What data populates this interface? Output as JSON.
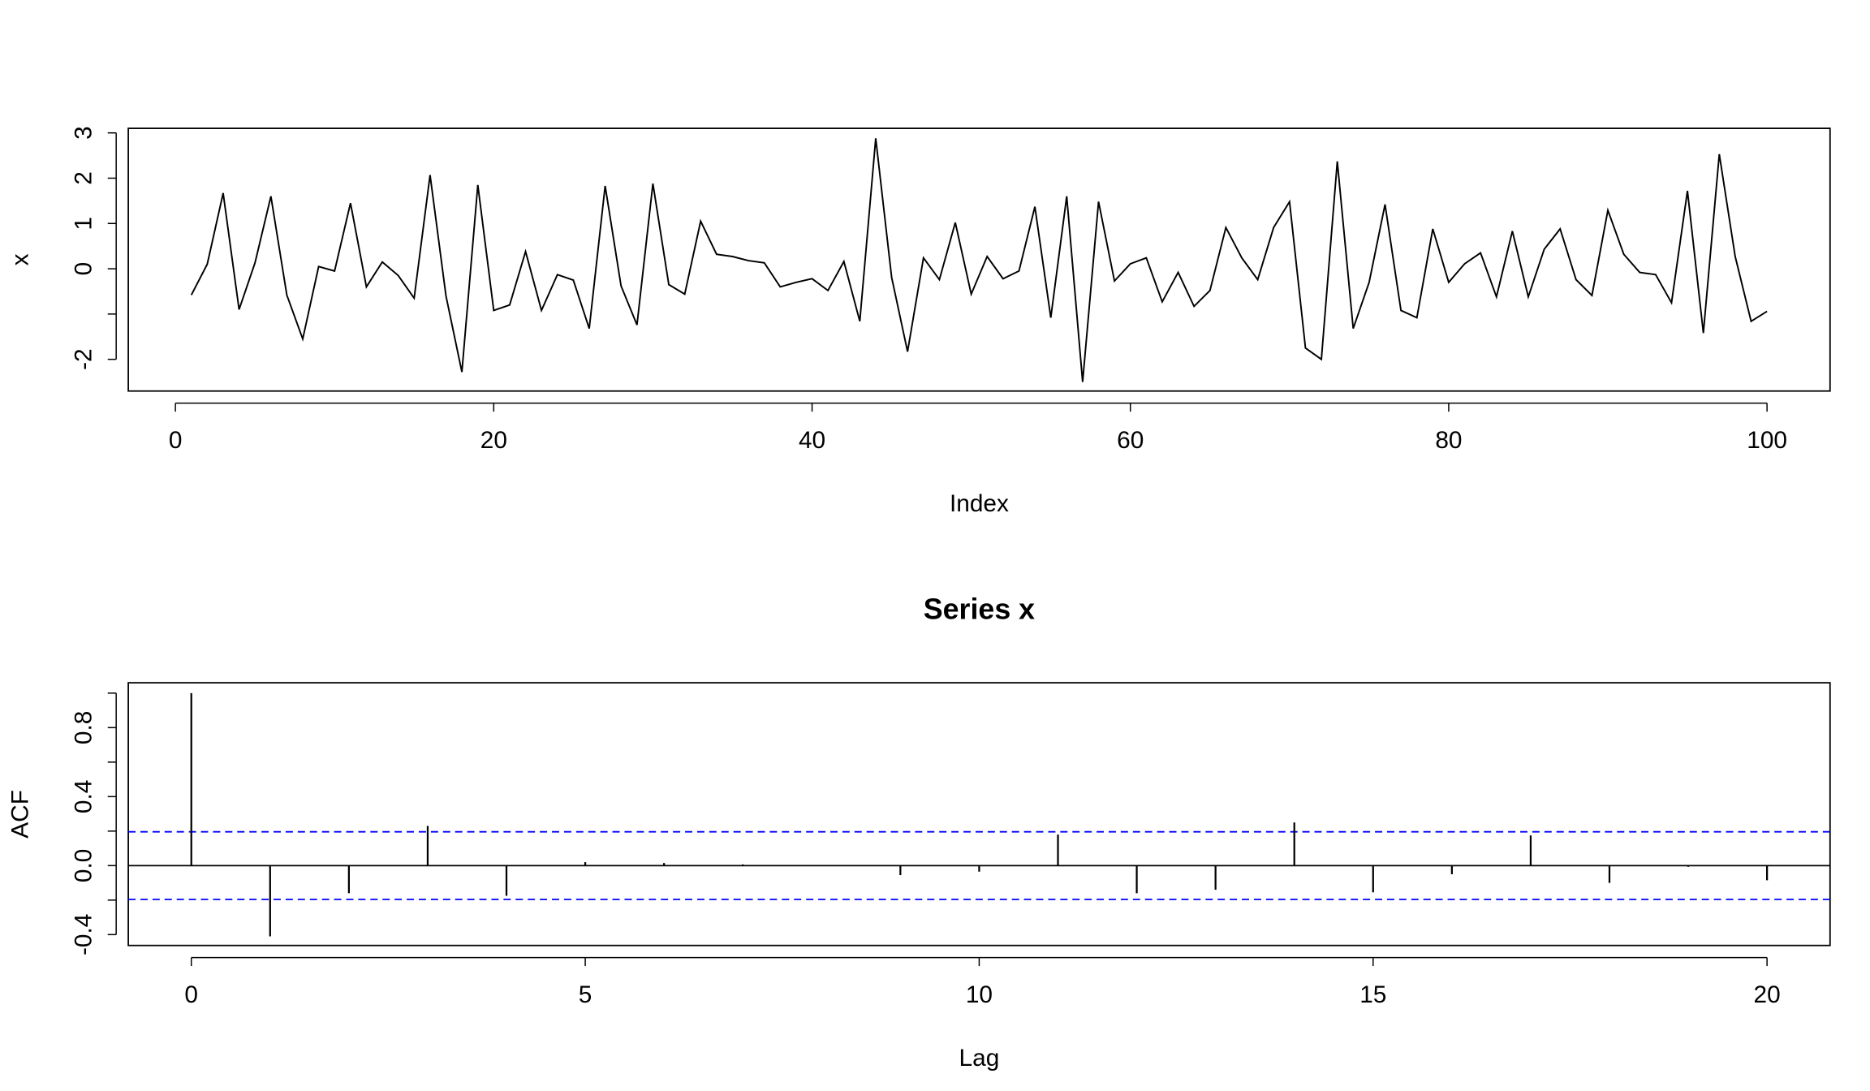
{
  "chart_data": [
    {
      "type": "line",
      "xlabel": "Index",
      "ylabel": "x",
      "color": "#000000",
      "x": [
        1,
        2,
        3,
        4,
        5,
        6,
        7,
        8,
        9,
        10,
        11,
        12,
        13,
        14,
        15,
        16,
        17,
        18,
        19,
        20,
        21,
        22,
        23,
        24,
        25,
        26,
        27,
        28,
        29,
        30,
        31,
        32,
        33,
        34,
        35,
        36,
        37,
        38,
        39,
        40,
        41,
        42,
        43,
        44,
        45,
        46,
        47,
        48,
        49,
        50,
        51,
        52,
        53,
        54,
        55,
        56,
        57,
        58,
        59,
        60,
        61,
        62,
        63,
        64,
        65,
        66,
        67,
        68,
        69,
        70,
        71,
        72,
        73,
        74,
        75,
        76,
        77,
        78,
        79,
        80,
        81,
        82,
        83,
        84,
        85,
        86,
        87,
        88,
        89,
        90,
        91,
        92,
        93,
        94,
        95,
        96,
        97,
        98,
        99,
        100
      ],
      "values": [
        -0.58,
        0.1,
        1.67,
        -0.9,
        0.13,
        1.6,
        -0.58,
        -1.55,
        0.05,
        -0.05,
        1.45,
        -0.4,
        0.15,
        -0.15,
        -0.65,
        2.07,
        -0.6,
        -2.28,
        1.85,
        -0.92,
        -0.8,
        0.38,
        -0.92,
        -0.13,
        -0.25,
        -1.32,
        1.83,
        -0.38,
        -1.24,
        1.88,
        -0.35,
        -0.56,
        1.05,
        0.32,
        0.27,
        0.18,
        0.13,
        -0.4,
        -0.3,
        -0.22,
        -0.48,
        0.16,
        -1.16,
        2.88,
        -0.19,
        -1.83,
        0.24,
        -0.24,
        1.02,
        -0.56,
        0.27,
        -0.22,
        -0.05,
        1.37,
        -1.08,
        1.6,
        -2.5,
        1.48,
        -0.27,
        0.11,
        0.24,
        -0.73,
        -0.08,
        -0.83,
        -0.48,
        0.91,
        0.24,
        -0.24,
        0.91,
        1.48,
        -1.75,
        -2.0,
        2.37,
        -1.32,
        -0.3,
        1.42,
        -0.92,
        -1.08,
        0.88,
        -0.3,
        0.11,
        0.35,
        -0.62,
        0.83,
        -0.62,
        0.43,
        0.88,
        -0.24,
        -0.59,
        1.29,
        0.32,
        -0.08,
        -0.13,
        -0.75,
        1.72,
        -1.42,
        2.53,
        0.27,
        -1.16,
        -0.94
      ],
      "xlim": [
        -2.96,
        103.96
      ],
      "ylim": [
        -2.7,
        3.1
      ],
      "xticks": [
        0,
        20,
        40,
        60,
        80,
        100
      ],
      "yticks": [
        -2,
        {
          "value": -1,
          "label": null
        },
        0,
        1,
        2,
        3
      ]
    },
    {
      "type": "acf",
      "title": "Series  x",
      "xlabel": "Lag",
      "ylabel": "ACF",
      "color": "#000000",
      "x": [
        0,
        1,
        2,
        3,
        4,
        5,
        6,
        7,
        8,
        9,
        10,
        11,
        12,
        13,
        14,
        15,
        16,
        17,
        18,
        19,
        20
      ],
      "values": [
        1.0,
        -0.41,
        -0.16,
        0.23,
        -0.175,
        0.02,
        0.015,
        0.007,
        -0.002,
        -0.055,
        -0.035,
        0.18,
        -0.16,
        -0.14,
        0.25,
        -0.155,
        -0.05,
        0.175,
        -0.1,
        -0.007,
        -0.085
      ],
      "ci_lines": [
        0.196,
        -0.196
      ],
      "ci_color": "#0000ff",
      "xlim": [
        -0.8,
        20.8
      ],
      "ylim": [
        -0.463,
        1.06
      ],
      "xticks": [
        0,
        5,
        10,
        15,
        20
      ],
      "yticks": [
        {
          "value": -0.4,
          "label": "-0.4"
        },
        {
          "value": -0.2,
          "label": null
        },
        {
          "value": 0,
          "label": "0.0"
        },
        {
          "value": 0.2,
          "label": null
        },
        {
          "value": 0.4,
          "label": "0.4"
        },
        {
          "value": 0.6,
          "label": null
        },
        {
          "value": 0.8,
          "label": "0.8"
        },
        {
          "value": 1,
          "label": null
        }
      ]
    }
  ]
}
